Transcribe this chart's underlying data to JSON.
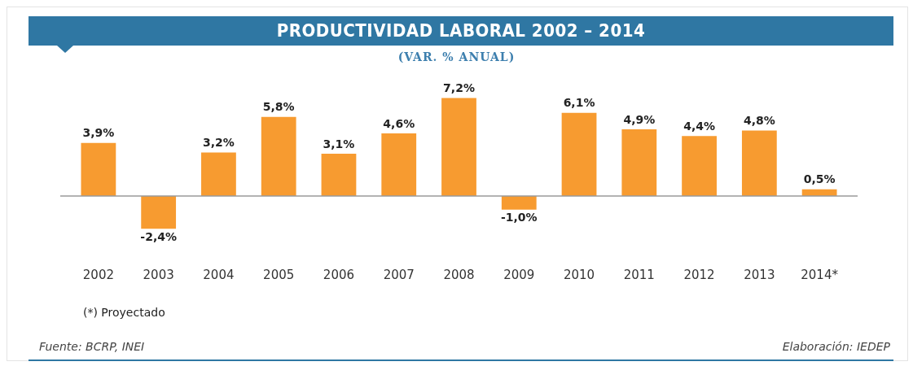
{
  "chart_data": {
    "type": "bar",
    "title": "PRODUCTIVIDAD LABORAL 2002 – 2014",
    "subtitle": "(VAR. % ANUAL)",
    "categories": [
      "2002",
      "2003",
      "2004",
      "2005",
      "2006",
      "2007",
      "2008",
      "2009",
      "2010",
      "2011",
      "2012",
      "2013",
      "2014*"
    ],
    "values": [
      3.9,
      -2.4,
      3.2,
      5.8,
      3.1,
      4.6,
      7.2,
      -1.0,
      6.1,
      4.9,
      4.4,
      4.8,
      0.5
    ],
    "value_labels": [
      "3,9%",
      "-2,4%",
      "3,2%",
      "5,8%",
      "3,1%",
      "4,6%",
      "7,2%",
      "-1,0%",
      "6,1%",
      "4,9%",
      "4,4%",
      "4,8%",
      "0,5%"
    ],
    "color": "#f79b30",
    "grid": false,
    "legend": false,
    "annotations": [
      "(*) Proyectado",
      "Fuente: BCRP, INEI",
      "Elaboración: IEDEP"
    ]
  }
}
